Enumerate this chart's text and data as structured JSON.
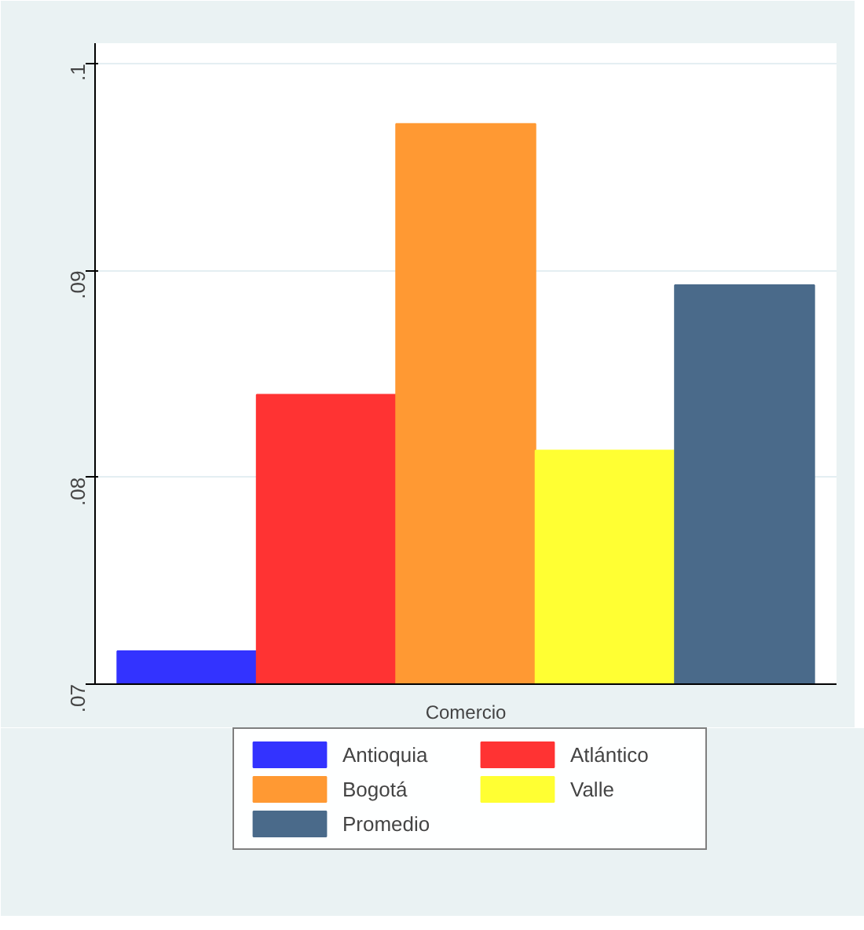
{
  "chart_data": {
    "type": "bar",
    "categories": [
      "Comercio"
    ],
    "series": [
      {
        "name": "Antioquia",
        "color": "#3333ff",
        "values": [
          0.0716
        ]
      },
      {
        "name": "Atlántico",
        "color": "#ff3333",
        "values": [
          0.084
        ]
      },
      {
        "name": "Bogotá",
        "color": "#ff9933",
        "values": [
          0.0971
        ]
      },
      {
        "name": "Valle",
        "color": "#ffff33",
        "values": [
          0.0813
        ]
      },
      {
        "name": "Promedio",
        "color": "#4a6a8a",
        "values": [
          0.0893
        ]
      }
    ],
    "ylim": [
      0.07,
      0.101
    ],
    "yticks": [
      {
        "value": 0.07,
        "label": ".07"
      },
      {
        "value": 0.08,
        "label": ".08"
      },
      {
        "value": 0.09,
        "label": ".09"
      },
      {
        "value": 0.1,
        "label": ".1"
      }
    ],
    "grid": "y",
    "legend": "bottom"
  }
}
